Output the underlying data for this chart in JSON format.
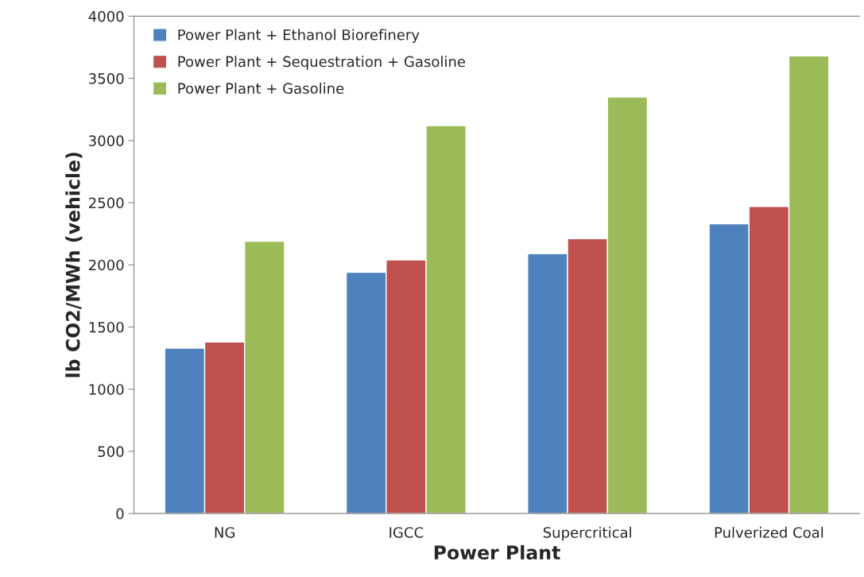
{
  "chart_data": {
    "type": "bar",
    "xlabel": "Power Plant",
    "ylabel": "lb CO2/MWh (vehicle)",
    "categories": [
      "NG",
      "IGCC",
      "Supercritical",
      "Pulverized Coal"
    ],
    "series": [
      {
        "name": "Power Plant + Ethanol Biorefinery",
        "color": "#4f81bd",
        "values": [
          1330,
          1940,
          2090,
          2330
        ]
      },
      {
        "name": "Power Plant + Sequestration + Gasoline",
        "color": "#c0504d",
        "values": [
          1380,
          2040,
          2210,
          2470
        ]
      },
      {
        "name": "Power Plant + Gasoline",
        "color": "#9bbb59",
        "values": [
          2190,
          3120,
          3350,
          3680
        ]
      }
    ],
    "ylim": [
      0,
      4000
    ],
    "yticks": [
      0,
      500,
      1000,
      1500,
      2000,
      2500,
      3000,
      3500,
      4000
    ],
    "grid": false,
    "legend": "top left"
  }
}
